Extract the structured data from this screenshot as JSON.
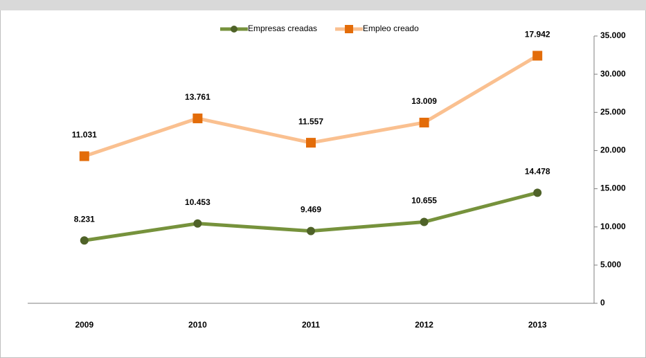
{
  "chart_data": {
    "type": "line",
    "stacked": true,
    "categories": [
      "2009",
      "2010",
      "2011",
      "2012",
      "2013"
    ],
    "series": [
      {
        "name": "Empresas creadas",
        "color": "#76923c",
        "marker_color": "#4f6228",
        "marker": "circle",
        "values": [
          8231,
          10453,
          9469,
          10655,
          14478
        ],
        "value_labels": [
          "8.231",
          "10.453",
          "9.469",
          "10.655",
          "14.478"
        ]
      },
      {
        "name": "Empleo creado",
        "color": "#fac090",
        "marker_color": "#e36c09",
        "marker": "square",
        "values": [
          11031,
          13761,
          11557,
          13009,
          17942
        ],
        "value_labels": [
          "11.031",
          "13.761",
          "11.557",
          "13.009",
          "17.942"
        ]
      }
    ],
    "ylim": [
      0,
      35000
    ],
    "yticks": [
      0,
      {
        "value": 5000,
        "label": "5.000"
      },
      {
        "value": 10000,
        "label": "10.000"
      },
      {
        "value": 15000,
        "label": "15.000"
      },
      {
        "value": 20000,
        "label": "20.000"
      },
      {
        "value": 25000,
        "label": "25.000"
      },
      {
        "value": 30000,
        "label": "30.000"
      },
      {
        "value": 35000,
        "label": "35.000"
      }
    ],
    "y_axis_side": "right",
    "legend": "top",
    "grid": false
  }
}
